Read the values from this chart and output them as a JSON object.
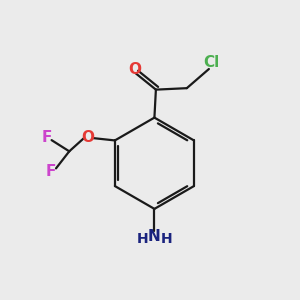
{
  "background_color": "#ebebeb",
  "bond_color": "#1a1a1a",
  "atom_colors": {
    "Cl": "#4caf50",
    "O": "#e53935",
    "F": "#cc44cc",
    "N": "#1a237e",
    "C": "#1a1a1a"
  },
  "figsize": [
    3.0,
    3.0
  ],
  "dpi": 100
}
